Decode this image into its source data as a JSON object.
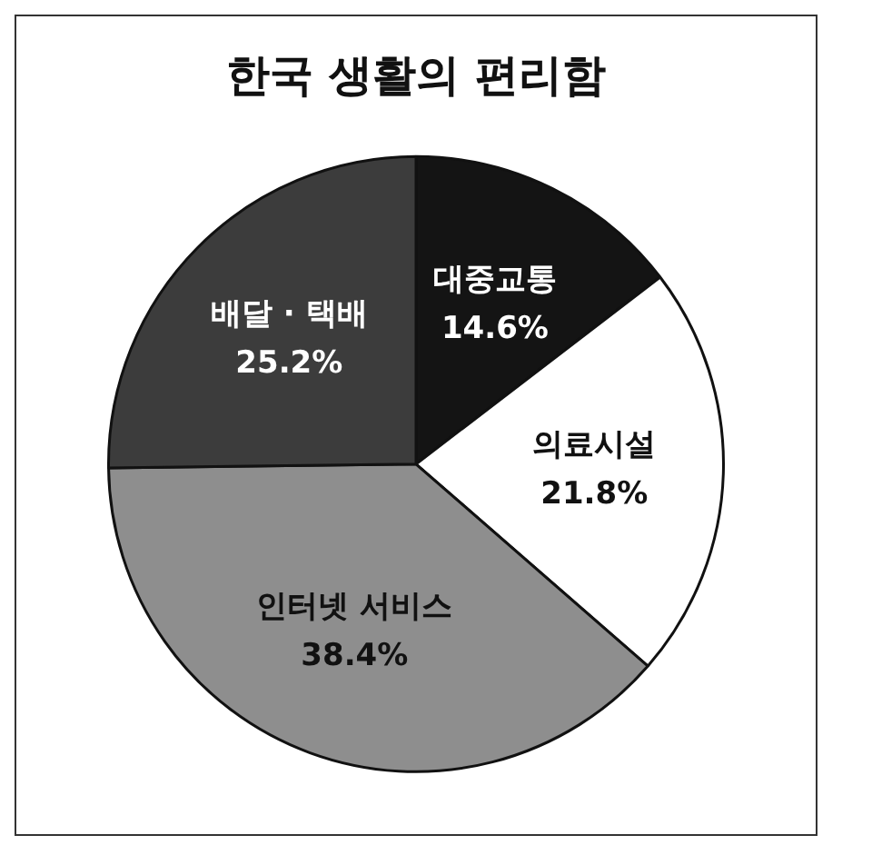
{
  "chart_data": {
    "type": "pie",
    "title": "한국 생활의 편리함",
    "categories": [
      "대중교통",
      "의료시설",
      "인터넷 서비스",
      "배달 · 택배"
    ],
    "values": [
      14.6,
      21.8,
      38.4,
      25.2
    ],
    "value_labels": [
      "14.6%",
      "21.8%",
      "38.4%",
      "25.2%"
    ],
    "colors": [
      "#141414",
      "#ffffff",
      "#8e8e8e",
      "#3c3c3c"
    ]
  }
}
